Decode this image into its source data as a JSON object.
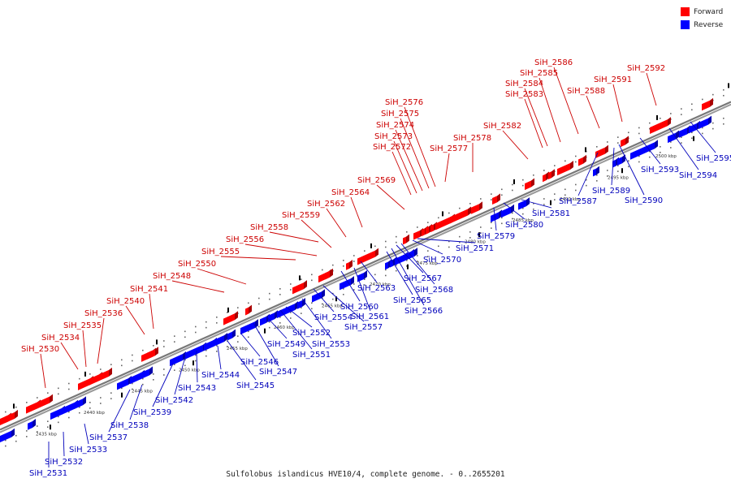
{
  "legend": {
    "forward": {
      "label": "Forward",
      "color": "#ff0000"
    },
    "reverse": {
      "label": "Reverse",
      "color": "#0000ff"
    }
  },
  "caption": "Sulfolobus islandicus HVE10/4, complete genome. - 0..2655201",
  "colors": {
    "backbone": "#777777",
    "forward": "#ff0000",
    "reverse": "#0000ff",
    "label_forward": "#cc0000",
    "label_reverse": "#0000bb"
  },
  "scale_labels": [
    "2435 kbp",
    "2440 kbp",
    "2445 kbp",
    "2450 kbp",
    "2455 kbp",
    "2460 kbp",
    "2465 kbp",
    "2470 kbp",
    "2475 kbp",
    "2480 kbp",
    "2485 kbp",
    "2490 kbp",
    "2495 kbp",
    "2500 kbp"
  ],
  "forward_labels": [
    "SiH_2530",
    "SiH_2534",
    "SiH_2535",
    "SiH_2536",
    "SiH_2540",
    "SiH_2541",
    "SiH_2548",
    "SiH_2550",
    "SiH_2555",
    "SiH_2556",
    "SiH_2558",
    "SiH_2559",
    "SiH_2562",
    "SiH_2564",
    "SiH_2569",
    "SiH_2572",
    "SiH_2573",
    "SiH_2574",
    "SiH_2575",
    "SiH_2576",
    "SiH_2577",
    "SiH_2578",
    "SiH_2582",
    "SiH_2583",
    "SiH_2584",
    "SiH_2585",
    "SiH_2586",
    "SiH_2588",
    "SiH_2591",
    "SiH_2592"
  ],
  "reverse_labels": [
    "SiH_2531",
    "SiH_2532",
    "SiH_2533",
    "SiH_2537",
    "SiH_2538",
    "SiH_2539",
    "SiH_2542",
    "SiH_2543",
    "SiH_2544",
    "SiH_2545",
    "SiH_2546",
    "SiH_2547",
    "SiH_2549",
    "SiH_2551",
    "SiH_2552",
    "SiH_2553",
    "SiH_2554",
    "SiH_2557",
    "SiH_2560",
    "SiH_2561",
    "SiH_2563",
    "SiH_2565",
    "SiH_2566",
    "SiH_2567",
    "SiH_2568",
    "SiH_2570",
    "SiH_2571",
    "SiH_2579",
    "SiH_2580",
    "SiH_2581",
    "SiH_2587",
    "SiH_2589",
    "SiH_2590",
    "SiH_2593",
    "SiH_2594",
    "SiH_2595"
  ]
}
